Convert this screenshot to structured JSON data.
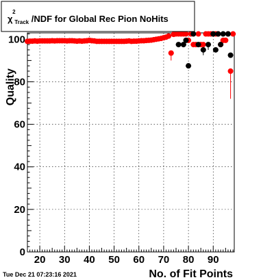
{
  "timestamp": "Tue Dec 21 07:23:16 2021",
  "chart_data": {
    "type": "scatter",
    "title": {
      "symbol": "χ",
      "superscript": "2",
      "subscript": "Track",
      "rest": "/NDF for Global Rec Pion NoHits"
    },
    "xlabel": "No. of Fit Points",
    "ylabel": "Quality",
    "xlim": [
      15,
      98.5
    ],
    "ylim": [
      0,
      103
    ],
    "xticks": [
      20,
      30,
      40,
      50,
      60,
      70,
      80,
      90
    ],
    "yticks": [
      0,
      20,
      40,
      60,
      80
    ],
    "grid": true,
    "colors": {
      "series_black": "#000000",
      "series_red": "#ff0000",
      "grid": "#000000"
    },
    "series": [
      {
        "color": "#ff0000",
        "points": [
          [
            15,
            99
          ],
          [
            16,
            99.1
          ],
          [
            17,
            99.1
          ],
          [
            18,
            99.2
          ],
          [
            19,
            99.1
          ],
          [
            20,
            99.2
          ],
          [
            21,
            99.2
          ],
          [
            22,
            99.2
          ],
          [
            23,
            99.2
          ],
          [
            24,
            99.2
          ],
          [
            25,
            99.3
          ],
          [
            26,
            99.2
          ],
          [
            27,
            99.3
          ],
          [
            28,
            99.3
          ],
          [
            29,
            99.3
          ],
          [
            30,
            99.3
          ],
          [
            31,
            99.2
          ],
          [
            32,
            99.3
          ],
          [
            33,
            99.3
          ],
          [
            34,
            99.2
          ],
          [
            35,
            99.1
          ],
          [
            36,
            99.2
          ],
          [
            37,
            99.1
          ],
          [
            38,
            99.2
          ],
          [
            39,
            99.3
          ],
          [
            40,
            99.5
          ],
          [
            41,
            99.3
          ],
          [
            42,
            99.2
          ],
          [
            43,
            99
          ],
          [
            44,
            99
          ],
          [
            45,
            99
          ],
          [
            46,
            99
          ],
          [
            47,
            99
          ],
          [
            48,
            99
          ],
          [
            49,
            99
          ],
          [
            50,
            99
          ],
          [
            51,
            99
          ],
          [
            52,
            99
          ],
          [
            53,
            99
          ],
          [
            54,
            99
          ],
          [
            55,
            99.1
          ],
          [
            56,
            99.2
          ],
          [
            57,
            99
          ],
          [
            58,
            99.1
          ],
          [
            59,
            99.1
          ],
          [
            60,
            99.2
          ],
          [
            61,
            99.3
          ],
          [
            62,
            99.3
          ],
          [
            63,
            99.4
          ],
          [
            64,
            99.5
          ],
          [
            65,
            99.6
          ],
          [
            66,
            99.8
          ],
          [
            67,
            100
          ],
          [
            68,
            100.2
          ],
          [
            69,
            100.4
          ],
          [
            70,
            100.7
          ],
          [
            71,
            101
          ],
          [
            72,
            101.5
          ],
          [
            73,
            93.5
          ],
          [
            74,
            102.3
          ],
          [
            75,
            102.5
          ],
          [
            76,
            102.5
          ],
          [
            77,
            102.5
          ],
          [
            78,
            102.5
          ],
          [
            79,
            102.5
          ],
          [
            80,
            99.5
          ],
          [
            81,
            102.5
          ],
          [
            82,
            97.5
          ],
          [
            83,
            97.5
          ],
          [
            84,
            102.5
          ],
          [
            85,
            97.5
          ],
          [
            86,
            97.5
          ],
          [
            87,
            102.5
          ],
          [
            88,
            102.5
          ],
          [
            89,
            102.5
          ],
          [
            90,
            102.5
          ],
          [
            91,
            102.5
          ],
          [
            92,
            102.5
          ],
          [
            93,
            97.5
          ],
          [
            94,
            99.5
          ],
          [
            95,
            99.5
          ],
          [
            96,
            102.5
          ],
          [
            97,
            85
          ],
          [
            98,
            102.5
          ]
        ],
        "err_low": {
          "73": 3.5,
          "97": 13
        }
      },
      {
        "color": "#000000",
        "points": [
          [
            76,
            97.5
          ],
          [
            78,
            97.5
          ],
          [
            79,
            99.5
          ],
          [
            80,
            87.5
          ],
          [
            82,
            102.5
          ],
          [
            84,
            97.5
          ],
          [
            86,
            95
          ],
          [
            88,
            97.5
          ],
          [
            90,
            102.5
          ],
          [
            91,
            95
          ],
          [
            92,
            102.5
          ],
          [
            93,
            97.5
          ],
          [
            94,
            102.5
          ],
          [
            96,
            102.5
          ],
          [
            97,
            92.5
          ]
        ],
        "err_low": {
          "86": 2.5,
          "88": 2.5
        }
      }
    ]
  }
}
